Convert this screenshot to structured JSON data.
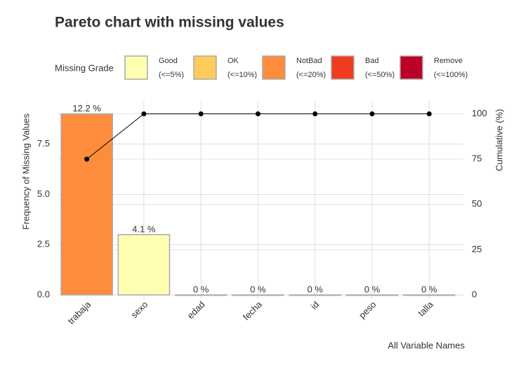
{
  "chart_data": {
    "type": "pareto",
    "title": "Pareto chart with missing values",
    "x_label": "All Variable Names",
    "y_label": "Frequency of Missing Values",
    "y2_label": "Cumulative (%)",
    "legend": {
      "title": "Missing Grade",
      "items": [
        {
          "name": "Good",
          "range": "(<=5%)",
          "color": "#ffffb2"
        },
        {
          "name": "OK",
          "range": "(<=10%)",
          "color": "#fecc5c"
        },
        {
          "name": "NotBad",
          "range": "(<=20%)",
          "color": "#fd8d3c"
        },
        {
          "name": "Bad",
          "range": "(<=50%)",
          "color": "#f03b20"
        },
        {
          "name": "Remove",
          "range": "(<=100%)",
          "color": "#bd0026"
        }
      ]
    },
    "categories": [
      "trabaja",
      "sexo",
      "edad",
      "fecha",
      "id",
      "peso",
      "talla"
    ],
    "values": [
      9,
      3,
      0,
      0,
      0,
      0,
      0
    ],
    "colors": [
      "#fd8d3c",
      "#ffffb2",
      "#ffffb2",
      "#ffffb2",
      "#ffffb2",
      "#ffffb2",
      "#ffffb2"
    ],
    "percentages": {
      "values": [
        12.2,
        4.1,
        0,
        0,
        0,
        0,
        0
      ],
      "value_labels": [
        "12.2 %",
        "4.1 %",
        "0 %",
        "0 %",
        "0 %",
        "0 %",
        "0 %"
      ]
    },
    "cumulative": {
      "axis": "y2",
      "color": "#000000",
      "values": [
        75,
        100,
        100,
        100,
        100,
        100,
        100
      ]
    },
    "ylim": [
      0,
      9.3
    ],
    "yticks": [
      {
        "value": 0,
        "label": "0.0"
      },
      2.5,
      {
        "value": 5,
        "label": "5.0"
      },
      7.5
    ],
    "y2lim": [
      0,
      103.3
    ],
    "y2ticks": [
      0,
      25,
      50,
      75,
      100
    ],
    "grid": true
  }
}
